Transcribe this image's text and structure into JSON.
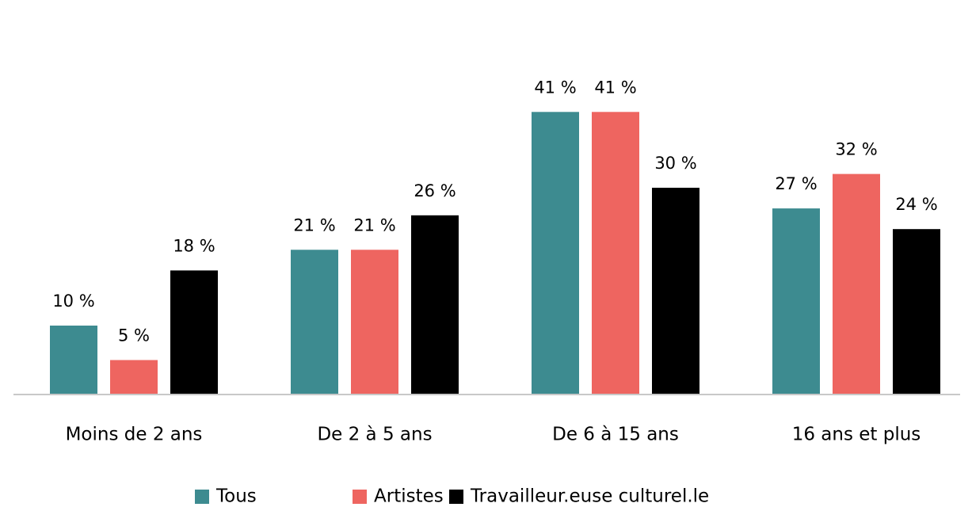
{
  "chart_data": {
    "type": "bar",
    "categories": [
      "Moins de 2 ans",
      "De 2 à 5 ans",
      "De 6 à 15 ans",
      "16 ans et plus"
    ],
    "series": [
      {
        "name": "Tous",
        "color": "#3d8b90",
        "values": [
          10,
          21,
          41,
          27
        ],
        "value_labels": [
          "10 %",
          "21 %",
          "41 %",
          "27 %"
        ]
      },
      {
        "name": "Artistes",
        "color": "#ee6560",
        "values": [
          5,
          21,
          41,
          32
        ],
        "value_labels": [
          "5 %",
          "21 %",
          "41 %",
          "32 %"
        ]
      },
      {
        "name": "Travailleur.euse culturel.le",
        "color": "#000000",
        "values": [
          18,
          26,
          30,
          24
        ],
        "value_labels": [
          "18 %",
          "26 %",
          "30 %",
          "24 %"
        ]
      }
    ],
    "ylim": [
      0,
      50
    ],
    "legend": "bottom"
  }
}
